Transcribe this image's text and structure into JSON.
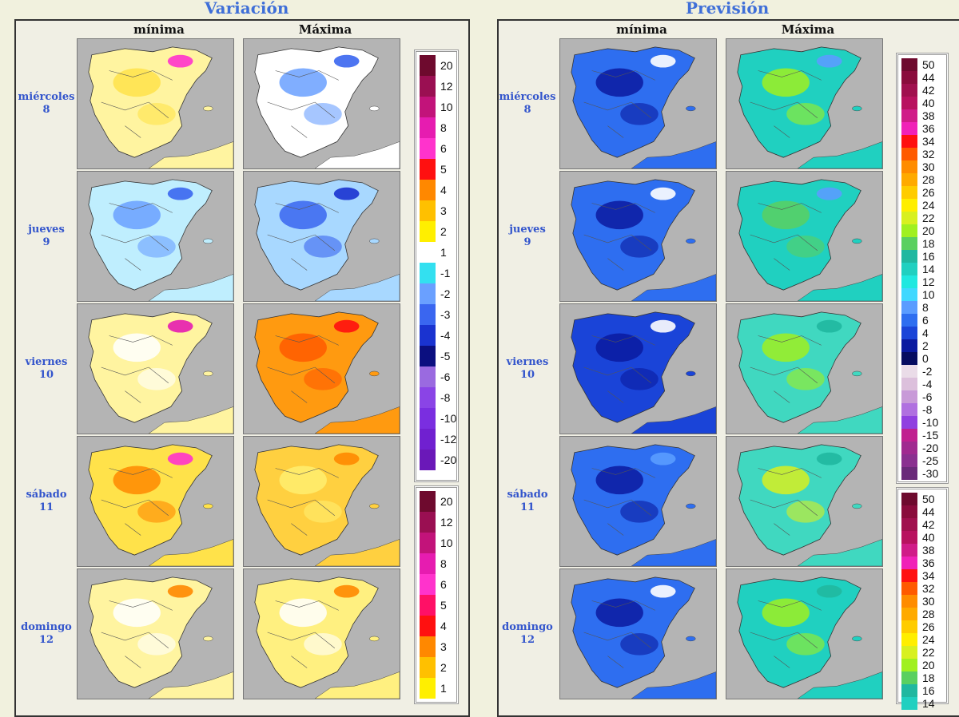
{
  "panels": {
    "variacion": {
      "title": "Variación",
      "col_min": "mínima",
      "col_max": "Máxima"
    },
    "prevision": {
      "title": "Previsión",
      "col_min": "mínima",
      "col_max": "Máxima"
    }
  },
  "days": [
    {
      "name": "miércoles",
      "num": "8"
    },
    {
      "name": "jueves",
      "num": "9"
    },
    {
      "name": "viernes",
      "num": "10"
    },
    {
      "name": "sábado",
      "num": "11"
    },
    {
      "name": "domingo",
      "num": "12"
    }
  ],
  "legend_variacion": [
    {
      "label": "20",
      "color": "#6e0a2e"
    },
    {
      "label": "12",
      "color": "#9a0f52"
    },
    {
      "label": "10",
      "color": "#c2137a"
    },
    {
      "label": "8",
      "color": "#e61cb0"
    },
    {
      "label": "6",
      "color": "#ff33cc"
    },
    {
      "label": "5",
      "color": "#ff1010"
    },
    {
      "label": "4",
      "color": "#ff8800"
    },
    {
      "label": "3",
      "color": "#ffc000"
    },
    {
      "label": "2",
      "color": "#ffef00"
    },
    {
      "label": "1",
      "color": "#ffffff"
    },
    {
      "label": "-1",
      "color": "#33e0f0"
    },
    {
      "label": "-2",
      "color": "#6aa0ff"
    },
    {
      "label": "-3",
      "color": "#3a66f0"
    },
    {
      "label": "-4",
      "color": "#1a33d0"
    },
    {
      "label": "-5",
      "color": "#0b0f80"
    },
    {
      "label": "-6",
      "color": "#9a6ae0"
    },
    {
      "label": "-8",
      "color": "#8a44e6"
    },
    {
      "label": "-10",
      "color": "#7a2ee0"
    },
    {
      "label": "-12",
      "color": "#7020d0"
    },
    {
      "label": "-20",
      "color": "#6a18b8"
    }
  ],
  "legend_variacion_2": [
    {
      "label": "20",
      "color": "#6e0a2e"
    },
    {
      "label": "12",
      "color": "#9a0f52"
    },
    {
      "label": "10",
      "color": "#c2137a"
    },
    {
      "label": "8",
      "color": "#e61cb0"
    },
    {
      "label": "6",
      "color": "#ff33cc"
    },
    {
      "label": "5",
      "color": "#ff1066"
    },
    {
      "label": "4",
      "color": "#ff1010"
    },
    {
      "label": "3",
      "color": "#ff8800"
    },
    {
      "label": "2",
      "color": "#ffc000"
    },
    {
      "label": "1",
      "color": "#ffef00"
    }
  ],
  "legend_prevision": [
    {
      "label": "50",
      "color": "#6e0a2e"
    },
    {
      "label": "44",
      "color": "#8a0c3c"
    },
    {
      "label": "42",
      "color": "#a0104e"
    },
    {
      "label": "40",
      "color": "#b8125f"
    },
    {
      "label": "38",
      "color": "#d01c88"
    },
    {
      "label": "36",
      "color": "#f022b8"
    },
    {
      "label": "34",
      "color": "#ff1010"
    },
    {
      "label": "32",
      "color": "#ff5a00"
    },
    {
      "label": "30",
      "color": "#ff8c00"
    },
    {
      "label": "28",
      "color": "#ffaa00"
    },
    {
      "label": "26",
      "color": "#ffcc00"
    },
    {
      "label": "24",
      "color": "#ffee00"
    },
    {
      "label": "22",
      "color": "#d8f020"
    },
    {
      "label": "20",
      "color": "#a0f020"
    },
    {
      "label": "18",
      "color": "#5ad060"
    },
    {
      "label": "16",
      "color": "#20b8a0"
    },
    {
      "label": "14",
      "color": "#20d0c0"
    },
    {
      "label": "12",
      "color": "#20e8e0"
    },
    {
      "label": "10",
      "color": "#40d8ff"
    },
    {
      "label": "8",
      "color": "#5a9cff"
    },
    {
      "label": "6",
      "color": "#2e6ef0"
    },
    {
      "label": "4",
      "color": "#1a44d8"
    },
    {
      "label": "2",
      "color": "#0a1aa0"
    },
    {
      "label": "0",
      "color": "#060c60"
    },
    {
      "label": "-2",
      "color": "#eadce8"
    },
    {
      "label": "-4",
      "color": "#dcc0dc"
    },
    {
      "label": "-6",
      "color": "#c89ad8"
    },
    {
      "label": "-8",
      "color": "#b070e0"
    },
    {
      "label": "-10",
      "color": "#9040e0"
    },
    {
      "label": "-15",
      "color": "#c02090"
    },
    {
      "label": "-20",
      "color": "#a02a90"
    },
    {
      "label": "-25",
      "color": "#8a3090"
    },
    {
      "label": "-30",
      "color": "#6a2a7a"
    }
  ],
  "legend_prevision_2": [
    {
      "label": "50",
      "color": "#6e0a2e"
    },
    {
      "label": "44",
      "color": "#8a0c3c"
    },
    {
      "label": "42",
      "color": "#a0104e"
    },
    {
      "label": "40",
      "color": "#b8125f"
    },
    {
      "label": "38",
      "color": "#d01c88"
    },
    {
      "label": "36",
      "color": "#f022b8"
    },
    {
      "label": "34",
      "color": "#ff1010"
    },
    {
      "label": "32",
      "color": "#ff5a00"
    },
    {
      "label": "30",
      "color": "#ff8c00"
    },
    {
      "label": "28",
      "color": "#ffaa00"
    },
    {
      "label": "26",
      "color": "#ffcc00"
    },
    {
      "label": "24",
      "color": "#ffee00"
    },
    {
      "label": "22",
      "color": "#d8f020"
    },
    {
      "label": "20",
      "color": "#a0f020"
    },
    {
      "label": "18",
      "color": "#5ad060"
    },
    {
      "label": "16",
      "color": "#20b8a0"
    },
    {
      "label": "14",
      "color": "#20d0c0"
    }
  ],
  "maps": {
    "var_min": [
      {
        "fill": "#fff4a0",
        "blob": "#ffe24a",
        "accent": "#ff33cc"
      },
      {
        "fill": "#bfeefe",
        "blob": "#6aa0ff",
        "accent": "#3a66f0"
      },
      {
        "fill": "#fff4a0",
        "blob": "#ffffff",
        "accent": "#e61cb0"
      },
      {
        "fill": "#ffe24a",
        "blob": "#ff8800",
        "accent": "#ff33cc"
      },
      {
        "fill": "#fff4a0",
        "blob": "#ffffff",
        "accent": "#ff8800"
      }
    ],
    "var_max": [
      {
        "fill": "#ffffff",
        "blob": "#6aa0ff",
        "accent": "#3a66f0"
      },
      {
        "fill": "#a8d8ff",
        "blob": "#3a66f0",
        "accent": "#1a33d0"
      },
      {
        "fill": "#ff9a10",
        "blob": "#ff5a00",
        "accent": "#ff1010"
      },
      {
        "fill": "#ffd040",
        "blob": "#ffef70",
        "accent": "#ff8800"
      },
      {
        "fill": "#fff080",
        "blob": "#ffffff",
        "accent": "#ff8800"
      }
    ],
    "prev_min": [
      {
        "fill": "#2e6ef0",
        "blob": "#0a1aa0",
        "accent": "#ffffff"
      },
      {
        "fill": "#2e6ef0",
        "blob": "#0a1aa0",
        "accent": "#ffffff"
      },
      {
        "fill": "#1a44d8",
        "blob": "#0a1aa0",
        "accent": "#ffffff"
      },
      {
        "fill": "#2e6ef0",
        "blob": "#0a1aa0",
        "accent": "#5a9cff"
      },
      {
        "fill": "#2e6ef0",
        "blob": "#0a1aa0",
        "accent": "#ffffff"
      }
    ],
    "prev_max": [
      {
        "fill": "#20d0c0",
        "blob": "#a0f020",
        "accent": "#5a9cff"
      },
      {
        "fill": "#20d0c0",
        "blob": "#5ad060",
        "accent": "#5a9cff"
      },
      {
        "fill": "#40d8c0",
        "blob": "#a0f020",
        "accent": "#20b8a0"
      },
      {
        "fill": "#40d8c0",
        "blob": "#d8f020",
        "accent": "#20b8a0"
      },
      {
        "fill": "#20d0c0",
        "blob": "#a0f020",
        "accent": "#20b8a0"
      }
    ]
  }
}
